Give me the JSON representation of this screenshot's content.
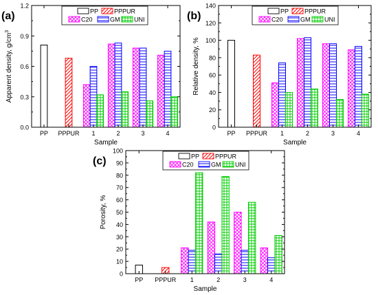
{
  "figure": {
    "colors": {
      "PP": "#000000",
      "PPPUR": "#ff0000",
      "C20": "#ff00ff",
      "GM": "#0000ff",
      "UNI": "#00cc00"
    },
    "legend_entries": [
      "PP",
      "PPPUR",
      "C20",
      "GM",
      "UNI"
    ],
    "categories": [
      "PP",
      "PPPUR",
      "1",
      "2",
      "3",
      "4"
    ]
  },
  "chart_data": [
    {
      "panel_label": "(a)",
      "type": "bar",
      "xlabel": "Sample",
      "ylabel": "Apparent density, g/cm",
      "ylabel_sup": "3",
      "ylim": [
        0,
        1.2
      ],
      "yticks": [
        "0.0",
        "0.3",
        "0.6",
        "0.9",
        "1.2"
      ],
      "categories": [
        "PP",
        "PPPUR",
        "1",
        "2",
        "3",
        "4"
      ],
      "series": [
        {
          "name": "PP",
          "values": [
            0.81,
            null,
            null,
            null,
            null,
            null
          ]
        },
        {
          "name": "PPPUR",
          "values": [
            null,
            0.68,
            null,
            null,
            null,
            null
          ]
        },
        {
          "name": "C20",
          "values": [
            null,
            null,
            0.42,
            0.82,
            0.78,
            0.71
          ]
        },
        {
          "name": "GM",
          "values": [
            null,
            null,
            0.6,
            0.83,
            0.78,
            0.75
          ]
        },
        {
          "name": "UNI",
          "values": [
            null,
            null,
            0.32,
            0.35,
            0.26,
            0.3
          ]
        }
      ]
    },
    {
      "panel_label": "(b)",
      "type": "bar",
      "xlabel": "Sample",
      "ylabel": "Relative density, %",
      "ylim": [
        0,
        140
      ],
      "yticks": [
        "0",
        "20",
        "40",
        "60",
        "80",
        "100",
        "120",
        "140"
      ],
      "categories": [
        "PP",
        "PPPUR",
        "1",
        "2",
        "3",
        "4"
      ],
      "series": [
        {
          "name": "PP",
          "values": [
            100,
            null,
            null,
            null,
            null,
            null
          ]
        },
        {
          "name": "PPPUR",
          "values": [
            null,
            83,
            null,
            null,
            null,
            null
          ]
        },
        {
          "name": "C20",
          "values": [
            null,
            null,
            51,
            102,
            96,
            89
          ]
        },
        {
          "name": "GM",
          "values": [
            null,
            null,
            74,
            103,
            96,
            93
          ]
        },
        {
          "name": "UNI",
          "values": [
            null,
            null,
            40,
            44,
            32,
            38
          ]
        }
      ]
    },
    {
      "panel_label": "(c)",
      "type": "bar",
      "xlabel": "Sample",
      "ylabel": "Porosity, %",
      "ylim": [
        0,
        100
      ],
      "yticks": [
        "0",
        "10",
        "20",
        "30",
        "40",
        "50",
        "60",
        "70",
        "80",
        "90",
        "100"
      ],
      "categories": [
        "PP",
        "PPPUR",
        "1",
        "2",
        "3",
        "4"
      ],
      "series": [
        {
          "name": "PP",
          "values": [
            7,
            null,
            null,
            null,
            null,
            null
          ]
        },
        {
          "name": "PPPUR",
          "values": [
            null,
            5,
            null,
            null,
            null,
            null
          ]
        },
        {
          "name": "C20",
          "values": [
            null,
            null,
            21,
            42,
            50,
            21
          ]
        },
        {
          "name": "GM",
          "values": [
            null,
            null,
            19,
            16,
            19,
            13
          ]
        },
        {
          "name": "UNI",
          "values": [
            null,
            null,
            82,
            79,
            58,
            31
          ]
        }
      ]
    }
  ]
}
